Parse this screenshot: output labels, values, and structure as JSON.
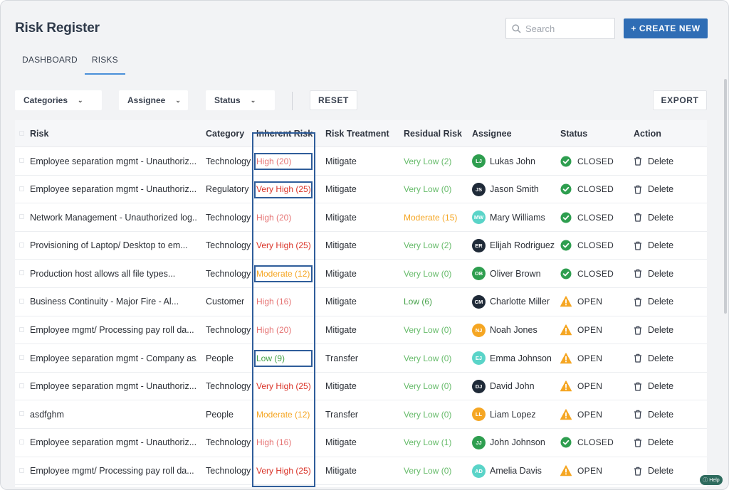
{
  "page": {
    "title": "Risk Register"
  },
  "search": {
    "placeholder": "Search",
    "value": ""
  },
  "create_button": {
    "label": "+ CREATE NEW"
  },
  "tabs": [
    {
      "label": "DASHBOARD",
      "active": false
    },
    {
      "label": "RISKS",
      "active": true
    }
  ],
  "filters": {
    "categories": "Categories",
    "assignee": "Assignee",
    "status": "Status",
    "reset": "RESET",
    "export": "EXPORT"
  },
  "columns": {
    "risk": "Risk",
    "category": "Category",
    "inherent": "Inherent Risk",
    "treatment": "Risk Treatment",
    "residual": "Residual Risk",
    "assignee": "Assignee",
    "status": "Status",
    "action": "Action"
  },
  "colors": {
    "high": "#e57373",
    "very_high": "#d93025",
    "moderate": "#f5a623",
    "low": "#43a047",
    "very_low": "#66bb6a",
    "closed": "#2e9e4f",
    "open": "#f5a623",
    "accent": "#2f6db5",
    "highlight": "#2f5d9a"
  },
  "rows": [
    {
      "risk": "Employee separation mgmt - Unauthoriz...",
      "category": "Technology",
      "inherent": "High (20)",
      "inherent_level": "high",
      "inherent_boxed": true,
      "treatment": "Mitigate",
      "residual": "Very Low (2)",
      "residual_level": "very_low",
      "initials": "LJ",
      "avatar_color": "#2e9e4f",
      "assignee": "Lukas John",
      "status": "CLOSED",
      "status_icon": "check-circle-icon",
      "action": "Delete"
    },
    {
      "risk": "Employee separation mgmt - Unauthoriz...",
      "category": "Regulatory",
      "inherent": "Very High (25)",
      "inherent_level": "very_high",
      "inherent_boxed": true,
      "treatment": "Mitigate",
      "residual": "Very Low (0)",
      "residual_level": "very_low",
      "initials": "JS",
      "avatar_color": "#1f2a38",
      "assignee": "Jason Smith",
      "status": "CLOSED",
      "status_icon": "check-circle-icon",
      "action": "Delete"
    },
    {
      "risk": "Network Management - Unauthorized log...",
      "category": "Technology",
      "inherent": "High (20)",
      "inherent_level": "high",
      "inherent_boxed": false,
      "treatment": "Mitigate",
      "residual": "Moderate (15)",
      "residual_level": "moderate",
      "initials": "MW",
      "avatar_color": "#5ad4c8",
      "assignee": "Mary Williams",
      "status": "CLOSED",
      "status_icon": "check-circle-icon",
      "action": "Delete"
    },
    {
      "risk": "Provisioning of Laptop/ Desktop to em...",
      "category": "Technology",
      "inherent": "Very High (25)",
      "inherent_level": "very_high",
      "inherent_boxed": false,
      "treatment": "Mitigate",
      "residual": "Very Low (2)",
      "residual_level": "very_low",
      "initials": "ER",
      "avatar_color": "#1f2a38",
      "assignee": "Elijah Rodriguez",
      "status": "CLOSED",
      "status_icon": "check-circle-icon",
      "action": "Delete"
    },
    {
      "risk": "Production host allows all file types...",
      "category": "Technology",
      "inherent": "Moderate (12)",
      "inherent_level": "moderate",
      "inherent_boxed": true,
      "treatment": "Mitigate",
      "residual": "Very Low (0)",
      "residual_level": "very_low",
      "initials": "OB",
      "avatar_color": "#2e9e4f",
      "assignee": "Oliver Brown",
      "status": "CLOSED",
      "status_icon": "check-circle-icon",
      "action": "Delete"
    },
    {
      "risk": "Business Continuity - Major Fire - Al...",
      "category": "Customer",
      "inherent": "High (16)",
      "inherent_level": "high",
      "inherent_boxed": false,
      "treatment": "Mitigate",
      "residual": "Low (6)",
      "residual_level": "low",
      "initials": "CM",
      "avatar_color": "#1f2a38",
      "assignee": "Charlotte Miller",
      "status": "OPEN",
      "status_icon": "warning-icon",
      "action": "Delete"
    },
    {
      "risk": "Employee mgmt/ Processing pay roll da...",
      "category": "Technology",
      "inherent": "High (20)",
      "inherent_level": "high",
      "inherent_boxed": false,
      "treatment": "Mitigate",
      "residual": "Very Low (0)",
      "residual_level": "very_low",
      "initials": "NJ",
      "avatar_color": "#f5a623",
      "assignee": "Noah Jones",
      "status": "OPEN",
      "status_icon": "warning-icon",
      "action": "Delete"
    },
    {
      "risk": "Employee separation mgmt - Company as...",
      "category": "People",
      "inherent": "Low (9)",
      "inherent_level": "low",
      "inherent_boxed": true,
      "treatment": "Transfer",
      "residual": "Very Low (0)",
      "residual_level": "very_low",
      "initials": "EJ",
      "avatar_color": "#5ad4c8",
      "assignee": "Emma Johnson",
      "status": "OPEN",
      "status_icon": "warning-icon",
      "action": "Delete"
    },
    {
      "risk": "Employee separation mgmt - Unauthoriz...",
      "category": "Technology",
      "inherent": "Very High (25)",
      "inherent_level": "very_high",
      "inherent_boxed": false,
      "treatment": "Mitigate",
      "residual": "Very Low (0)",
      "residual_level": "very_low",
      "initials": "DJ",
      "avatar_color": "#1f2a38",
      "assignee": "David John",
      "status": "OPEN",
      "status_icon": "warning-icon",
      "action": "Delete"
    },
    {
      "risk": "asdfghm",
      "category": "People",
      "inherent": "Moderate (12)",
      "inherent_level": "moderate",
      "inherent_boxed": false,
      "treatment": "Transfer",
      "residual": "Very Low (0)",
      "residual_level": "very_low",
      "initials": "LL",
      "avatar_color": "#f5a623",
      "assignee": "Liam Lopez",
      "status": "OPEN",
      "status_icon": "warning-icon",
      "action": "Delete"
    },
    {
      "risk": "Employee separation mgmt - Unauthoriz...",
      "category": "Technology",
      "inherent": "High (16)",
      "inherent_level": "high",
      "inherent_boxed": false,
      "treatment": "Mitigate",
      "residual": "Very Low (1)",
      "residual_level": "very_low",
      "initials": "JJ",
      "avatar_color": "#2e9e4f",
      "assignee": "John Johnson",
      "status": "CLOSED",
      "status_icon": "check-circle-icon",
      "action": "Delete"
    },
    {
      "risk": "Employee mgmt/ Processing pay roll da...",
      "category": "Technology",
      "inherent": "Very High (25)",
      "inherent_level": "very_high",
      "inherent_boxed": false,
      "treatment": "Mitigate",
      "residual": "Very Low (0)",
      "residual_level": "very_low",
      "initials": "AD",
      "avatar_color": "#5ad4c8",
      "assignee": "Amelia Davis",
      "status": "OPEN",
      "status_icon": "warning-icon",
      "action": "Delete"
    }
  ],
  "help": {
    "label": "Help"
  }
}
